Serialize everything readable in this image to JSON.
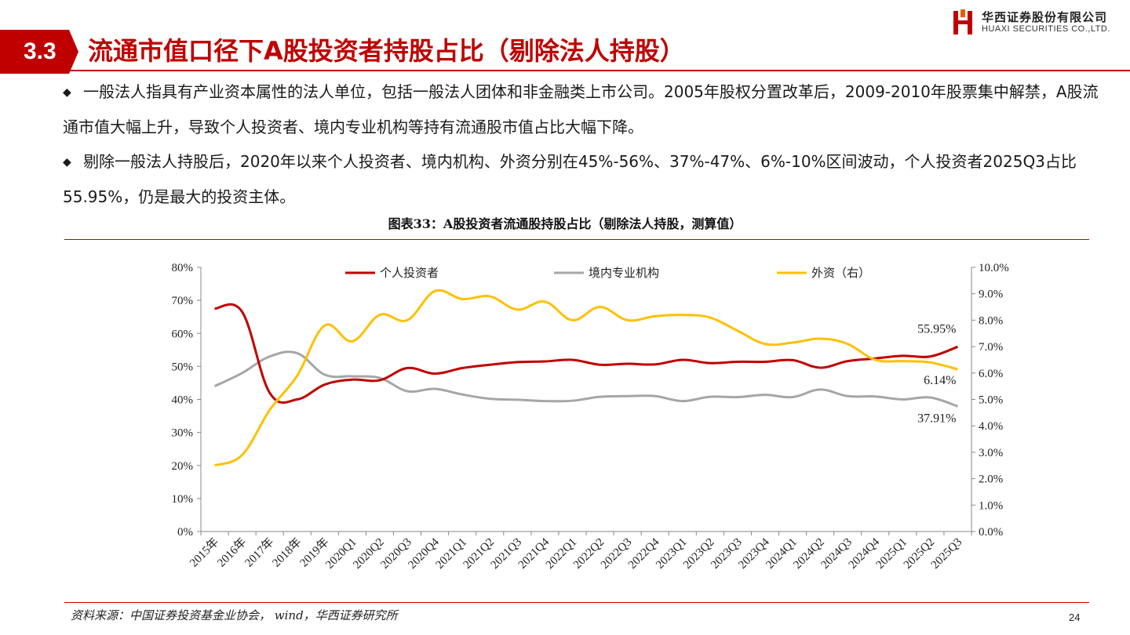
{
  "header": {
    "section_number": "3.3",
    "title": "流通市值口径下A股投资者持股占比（剔除法人持股）",
    "logo_cn": "华西证券股份有限公司",
    "logo_en": "HUAXI SECURITIES CO.,LTD."
  },
  "bullets": [
    {
      "marker": "◆",
      "text": "一般法人指具有产业资本属性的法人单位，包括一般法人团体和非金融类上市公司。2005年股权分置改革后，2009-2010年股票集中解禁，A股流通市值大幅上升，导致个人投资者、境内专业机构等持有流通股市值占比大幅下降。"
    },
    {
      "marker": "◆",
      "text": "剔除一般法人持股后，2020年以来个人投资者、境内机构、外资分别在45%-56%、37%-47%、6%-10%区间波动，个人投资者2025Q3占比55.95%，仍是最大的投资主体。"
    }
  ],
  "chart_title": "图表33：A股投资者流通股持股占比（剔除法人持股，测算值）",
  "source": "资料来源：中国证券投资基金业协会，  wind，华西证券研究所",
  "page_number": "24",
  "chart_data": {
    "type": "line",
    "categories": [
      "2015年",
      "2016年",
      "2017年",
      "2018年",
      "2019年",
      "2020Q1",
      "2020Q2",
      "2020Q3",
      "2020Q4",
      "2021Q1",
      "2021Q2",
      "2021Q3",
      "2021Q4",
      "2022Q1",
      "2022Q2",
      "2022Q3",
      "2022Q4",
      "2023Q1",
      "2023Q2",
      "2023Q3",
      "2023Q4",
      "2024Q1",
      "2024Q2",
      "2024Q3",
      "2024Q4",
      "2025Q1",
      "2025Q2",
      "2025Q3"
    ],
    "y_left": {
      "ylim": [
        0,
        80
      ],
      "ticks": [
        "0%",
        "10%",
        "20%",
        "30%",
        "40%",
        "50%",
        "60%",
        "70%",
        "80%"
      ]
    },
    "y_right": {
      "ylim": [
        0,
        10
      ],
      "ticks": [
        "0.0%",
        "1.0%",
        "2.0%",
        "3.0%",
        "4.0%",
        "5.0%",
        "6.0%",
        "7.0%",
        "8.0%",
        "9.0%",
        "10.0%"
      ]
    },
    "series": [
      {
        "name": "个人投资者",
        "axis": "left",
        "color": "#c00000",
        "values": [
          67.5,
          66.5,
          42.0,
          40.0,
          44.5,
          46.0,
          45.8,
          49.5,
          47.8,
          49.5,
          50.5,
          51.3,
          51.5,
          52.0,
          50.5,
          50.8,
          50.6,
          52.0,
          51.0,
          51.4,
          51.4,
          51.9,
          49.6,
          51.6,
          52.4,
          53.2,
          53.0,
          55.95
        ],
        "end_label": "55.95%"
      },
      {
        "name": "境内专业机构",
        "axis": "left",
        "color": "#a6a6a6",
        "values": [
          44.0,
          48.0,
          53.0,
          54.0,
          47.5,
          47.0,
          46.5,
          42.5,
          43.2,
          41.5,
          40.2,
          39.9,
          39.5,
          39.6,
          40.8,
          41.0,
          41.0,
          39.5,
          40.8,
          40.7,
          41.4,
          40.7,
          43.0,
          41.0,
          40.9,
          40.0,
          40.6,
          37.91
        ],
        "end_label": "37.91%"
      },
      {
        "name": "外资（右）",
        "axis": "right",
        "color": "#ffc000",
        "values": [
          2.5,
          2.9,
          4.6,
          5.9,
          7.8,
          7.2,
          8.2,
          8.0,
          9.1,
          8.8,
          8.9,
          8.4,
          8.7,
          8.0,
          8.5,
          8.0,
          8.15,
          8.2,
          8.1,
          7.6,
          7.1,
          7.15,
          7.3,
          7.1,
          6.5,
          6.45,
          6.4,
          6.14
        ],
        "end_label": "6.14%"
      }
    ],
    "legend_position": "top",
    "grid": false
  }
}
